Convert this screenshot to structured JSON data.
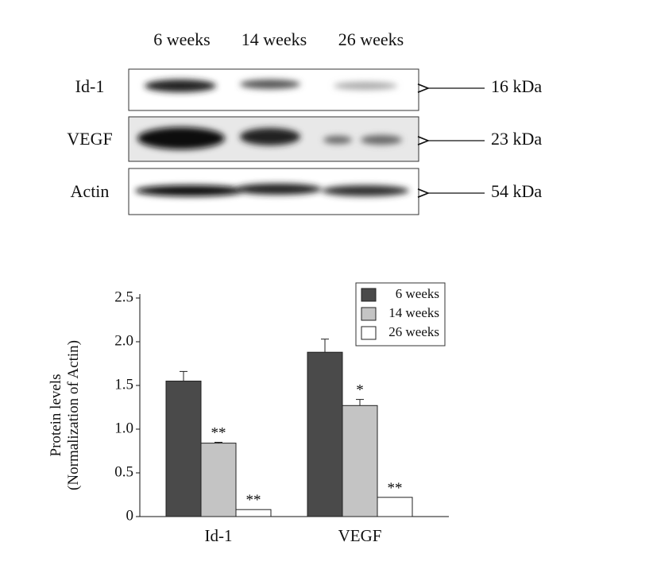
{
  "blot": {
    "lanes": [
      "6 weeks",
      "14 weeks",
      "26 weeks"
    ],
    "rows": [
      {
        "label": "Id-1",
        "size": "16 kDa"
      },
      {
        "label": "VEGF",
        "size": "23 kDa"
      },
      {
        "label": "Actin",
        "size": "54 kDa"
      }
    ]
  },
  "chart_data": {
    "type": "bar",
    "ylabel": [
      "Protein levels",
      "(Normalization of Actin)"
    ],
    "categories": [
      "Id-1",
      "VEGF"
    ],
    "series": [
      {
        "name": "6 weeks",
        "color": "#4a4a4a",
        "values": [
          1.55,
          1.88
        ],
        "errors": [
          0.11,
          0.15
        ]
      },
      {
        "name": "14 weeks",
        "color": "#c4c4c4",
        "values": [
          0.84,
          1.27
        ],
        "errors": [
          0.01,
          0.07
        ],
        "marks": [
          "**",
          "*"
        ]
      },
      {
        "name": "26 weeks",
        "color": "#ffffff",
        "values": [
          0.08,
          0.22
        ],
        "errors": [
          0,
          0
        ],
        "marks": [
          "**",
          "**"
        ]
      }
    ],
    "ylim": [
      0,
      2.5
    ],
    "yticks": [
      0,
      0.5,
      {
        "value": 1,
        "label": "1.0"
      },
      1.5,
      {
        "value": 2,
        "label": "2.0"
      },
      2.5
    ],
    "legend": "top-right"
  }
}
